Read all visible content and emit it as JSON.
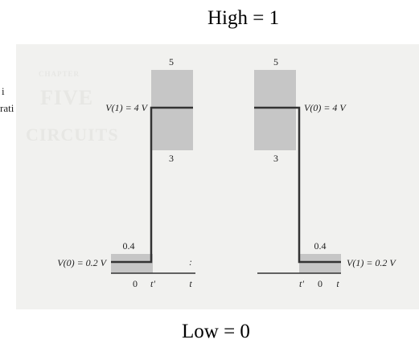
{
  "titles": {
    "high": "High = 1",
    "low": "Low = 0"
  },
  "margin_text": [
    "i",
    "rati"
  ],
  "background_words": [
    "CHAPTER",
    "FIVE",
    "CIRCUITS"
  ],
  "left_panel": {
    "high_band_top": "5",
    "high_band_bottom": "3",
    "high_level_label": "V(1) = 4 V",
    "low_band_top": "0.4",
    "low_level_label": "V(0) = 0.2 V",
    "tick_zero": "0",
    "tick_tprime": "t'",
    "tick_t": "t",
    "stray_mark": ":"
  },
  "right_panel": {
    "high_band_top": "5",
    "high_band_bottom": "3",
    "high_level_label": "V(0) = 4 V",
    "low_band_top": "0.4",
    "low_level_label": "V(1) = 0.2 V",
    "tick_tprime": "t'",
    "tick_zero": "0",
    "tick_t": "t"
  },
  "colors": {
    "band": "#c6c6c6",
    "trace": "#333333",
    "scan_bg": "#f1f1ef"
  }
}
